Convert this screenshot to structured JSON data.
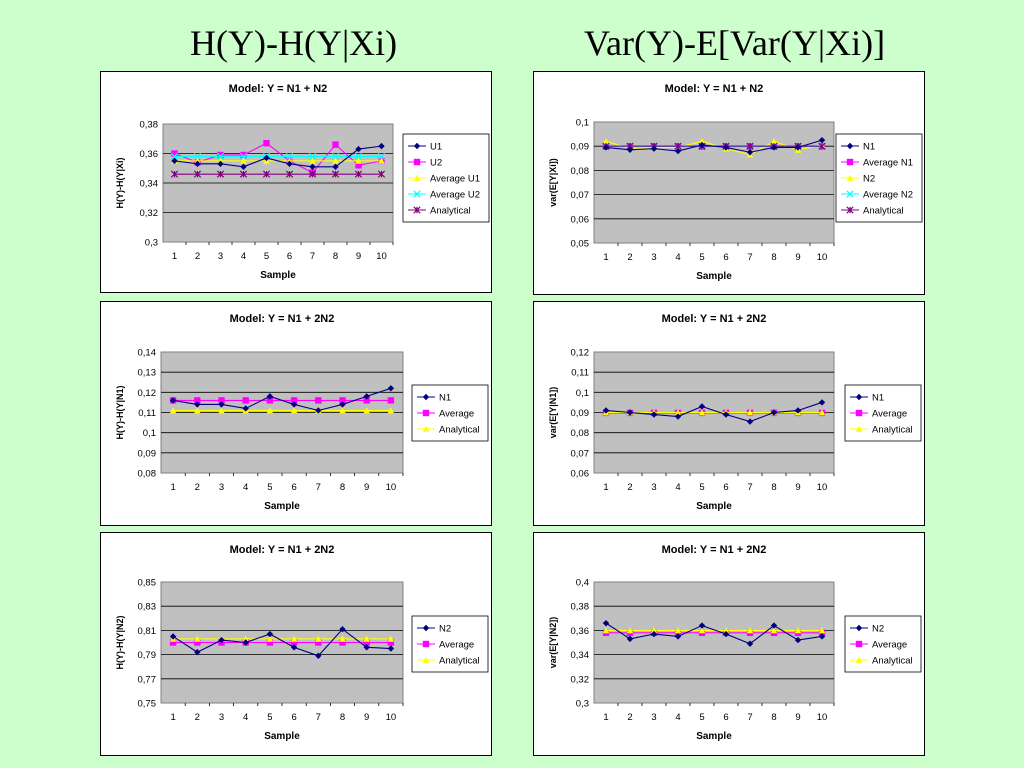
{
  "headings": {
    "left": "H(Y)-H(Y|Xi)",
    "right": "Var(Y)-E[Var(Y|Xi)]"
  },
  "chart_data": [
    {
      "type": "line",
      "title": "Model: Y = N1 + N2",
      "xlabel": "Sample",
      "ylabel": "H(Y)-H(Y|Xi)",
      "categories": [
        "1",
        "2",
        "3",
        "4",
        "5",
        "6",
        "7",
        "8",
        "9",
        "10"
      ],
      "ylim": [
        0.3,
        0.38
      ],
      "yticks": [
        "0,3",
        "0,32",
        "0,34",
        "0,36",
        "0,38"
      ],
      "grid": true,
      "legend": "right",
      "series": [
        {
          "name": "U1",
          "color": "#000080",
          "marker": "diamond",
          "values": [
            0.355,
            0.353,
            0.353,
            0.351,
            0.357,
            0.353,
            0.351,
            0.351,
            0.363,
            0.365
          ]
        },
        {
          "name": "U2",
          "color": "#ff00ff",
          "marker": "square",
          "values": [
            0.36,
            0.354,
            0.359,
            0.359,
            0.367,
            0.355,
            0.347,
            0.366,
            0.352,
            0.355
          ]
        },
        {
          "name": "Average U1",
          "color": "#ffff00",
          "marker": "triangle",
          "values": [
            0.355,
            0.355,
            0.355,
            0.355,
            0.355,
            0.355,
            0.355,
            0.355,
            0.355,
            0.355
          ]
        },
        {
          "name": "Average U2",
          "color": "#00ffff",
          "marker": "x",
          "values": [
            0.358,
            0.358,
            0.358,
            0.358,
            0.358,
            0.358,
            0.358,
            0.358,
            0.358,
            0.358
          ]
        },
        {
          "name": "Analytical",
          "color": "#800080",
          "marker": "star",
          "values": [
            0.346,
            0.346,
            0.346,
            0.346,
            0.346,
            0.346,
            0.346,
            0.346,
            0.346,
            0.346
          ]
        }
      ]
    },
    {
      "type": "line",
      "title": "Model: Y = N1 + N2",
      "xlabel": "Sample",
      "ylabel": "var(E[Y|Xi])",
      "categories": [
        "1",
        "2",
        "3",
        "4",
        "5",
        "6",
        "7",
        "8",
        "9",
        "10"
      ],
      "ylim": [
        0.05,
        0.1
      ],
      "yticks": [
        "0,05",
        "0,06",
        "0,07",
        "0,08",
        "0,09",
        "0,1"
      ],
      "grid": true,
      "legend": "right",
      "series": [
        {
          "name": "N1",
          "color": "#000080",
          "marker": "diamond",
          "values": [
            0.0895,
            0.0885,
            0.089,
            0.088,
            0.0905,
            0.0895,
            0.0875,
            0.0895,
            0.0895,
            0.0925
          ]
        },
        {
          "name": "Average N1",
          "color": "#ff00ff",
          "marker": "square",
          "values": [
            0.0899,
            0.0899,
            0.0899,
            0.0899,
            0.0899,
            0.0899,
            0.0899,
            0.0899,
            0.0899,
            0.0899
          ]
        },
        {
          "name": "N2",
          "color": "#ffff00",
          "marker": "triangle",
          "values": [
            0.092,
            0.089,
            0.0895,
            0.0895,
            0.092,
            0.089,
            0.0865,
            0.092,
            0.0885,
            0.0905
          ]
        },
        {
          "name": "Average N2",
          "color": "#00ffff",
          "marker": "x",
          "values": [
            0.0899,
            0.0899,
            0.0899,
            0.0899,
            0.0899,
            0.0899,
            0.0899,
            0.0899,
            0.0899,
            0.0899
          ]
        },
        {
          "name": "Analytical",
          "color": "#800080",
          "marker": "star",
          "values": [
            0.09,
            0.09,
            0.09,
            0.09,
            0.09,
            0.09,
            0.09,
            0.09,
            0.09,
            0.09
          ]
        }
      ]
    },
    {
      "type": "line",
      "title": "Model: Y = N1 + 2N2",
      "xlabel": "Sample",
      "ylabel": "H(Y)-H(Y|N1)",
      "categories": [
        "1",
        "2",
        "3",
        "4",
        "5",
        "6",
        "7",
        "8",
        "9",
        "10"
      ],
      "ylim": [
        0.08,
        0.14
      ],
      "yticks": [
        "0,08",
        "0,09",
        "0,1",
        "0,11",
        "0,12",
        "0,13",
        "0,14"
      ],
      "grid": true,
      "legend": "right",
      "series": [
        {
          "name": "N1",
          "color": "#000080",
          "marker": "diamond",
          "values": [
            0.116,
            0.114,
            0.114,
            0.112,
            0.118,
            0.114,
            0.111,
            0.114,
            0.118,
            0.122
          ]
        },
        {
          "name": "Average",
          "color": "#ff00ff",
          "marker": "square",
          "values": [
            0.116,
            0.116,
            0.116,
            0.116,
            0.116,
            0.116,
            0.116,
            0.116,
            0.116,
            0.116
          ]
        },
        {
          "name": "Analytical",
          "color": "#ffff00",
          "marker": "triangle",
          "values": [
            0.111,
            0.111,
            0.111,
            0.111,
            0.111,
            0.111,
            0.111,
            0.111,
            0.111,
            0.111
          ]
        }
      ]
    },
    {
      "type": "line",
      "title": "Model: Y = N1 + 2N2",
      "xlabel": "Sample",
      "ylabel": "var(E[Y|N1])",
      "categories": [
        "1",
        "2",
        "3",
        "4",
        "5",
        "6",
        "7",
        "8",
        "9",
        "10"
      ],
      "ylim": [
        0.06,
        0.12
      ],
      "yticks": [
        "0,06",
        "0,07",
        "0,08",
        "0,09",
        "0,1",
        "0,11",
        "0,12"
      ],
      "grid": true,
      "legend": "right",
      "series": [
        {
          "name": "N1",
          "color": "#000080",
          "marker": "diamond",
          "values": [
            0.091,
            0.09,
            0.089,
            0.088,
            0.093,
            0.089,
            0.0855,
            0.09,
            0.091,
            0.095
          ]
        },
        {
          "name": "Average",
          "color": "#ff00ff",
          "marker": "square",
          "values": [
            0.0898,
            0.0898,
            0.0898,
            0.0898,
            0.0898,
            0.0898,
            0.0898,
            0.0898,
            0.0898,
            0.0898
          ]
        },
        {
          "name": "Analytical",
          "color": "#ffff00",
          "marker": "triangle",
          "values": [
            0.09,
            0.09,
            0.09,
            0.09,
            0.09,
            0.09,
            0.09,
            0.09,
            0.09,
            0.09
          ]
        }
      ]
    },
    {
      "type": "line",
      "title": "Model: Y = N1 + 2N2",
      "xlabel": "Sample",
      "ylabel": "H(Y)-H(Y|N2)",
      "categories": [
        "1",
        "2",
        "3",
        "4",
        "5",
        "6",
        "7",
        "8",
        "9",
        "10"
      ],
      "ylim": [
        0.75,
        0.85
      ],
      "yticks": [
        "0,75",
        "0,77",
        "0,79",
        "0,81",
        "0,83",
        "0,85"
      ],
      "grid": true,
      "legend": "right",
      "series": [
        {
          "name": "N2",
          "color": "#000080",
          "marker": "diamond",
          "values": [
            0.805,
            0.792,
            0.802,
            0.8,
            0.807,
            0.796,
            0.789,
            0.811,
            0.796,
            0.795
          ]
        },
        {
          "name": "Average",
          "color": "#ff00ff",
          "marker": "square",
          "values": [
            0.8,
            0.8,
            0.8,
            0.8,
            0.8,
            0.8,
            0.8,
            0.8,
            0.8,
            0.8
          ]
        },
        {
          "name": "Analytical",
          "color": "#ffff00",
          "marker": "triangle",
          "values": [
            0.803,
            0.803,
            0.803,
            0.803,
            0.803,
            0.803,
            0.803,
            0.803,
            0.803,
            0.803
          ]
        }
      ]
    },
    {
      "type": "line",
      "title": "Model: Y = N1 + 2N2",
      "xlabel": "Sample",
      "ylabel": "var(E[Y|N2])",
      "categories": [
        "1",
        "2",
        "3",
        "4",
        "5",
        "6",
        "7",
        "8",
        "9",
        "10"
      ],
      "ylim": [
        0.3,
        0.4
      ],
      "yticks": [
        "0,3",
        "0,32",
        "0,34",
        "0,36",
        "0,38",
        "0,4"
      ],
      "grid": true,
      "legend": "right",
      "series": [
        {
          "name": "N2",
          "color": "#000080",
          "marker": "diamond",
          "values": [
            0.366,
            0.353,
            0.357,
            0.355,
            0.364,
            0.357,
            0.349,
            0.364,
            0.352,
            0.355
          ]
        },
        {
          "name": "Average",
          "color": "#ff00ff",
          "marker": "square",
          "values": [
            0.358,
            0.358,
            0.358,
            0.358,
            0.358,
            0.358,
            0.358,
            0.358,
            0.358,
            0.358
          ]
        },
        {
          "name": "Analytical",
          "color": "#ffff00",
          "marker": "triangle",
          "values": [
            0.36,
            0.36,
            0.36,
            0.36,
            0.36,
            0.36,
            0.36,
            0.36,
            0.36,
            0.36
          ]
        }
      ]
    }
  ]
}
